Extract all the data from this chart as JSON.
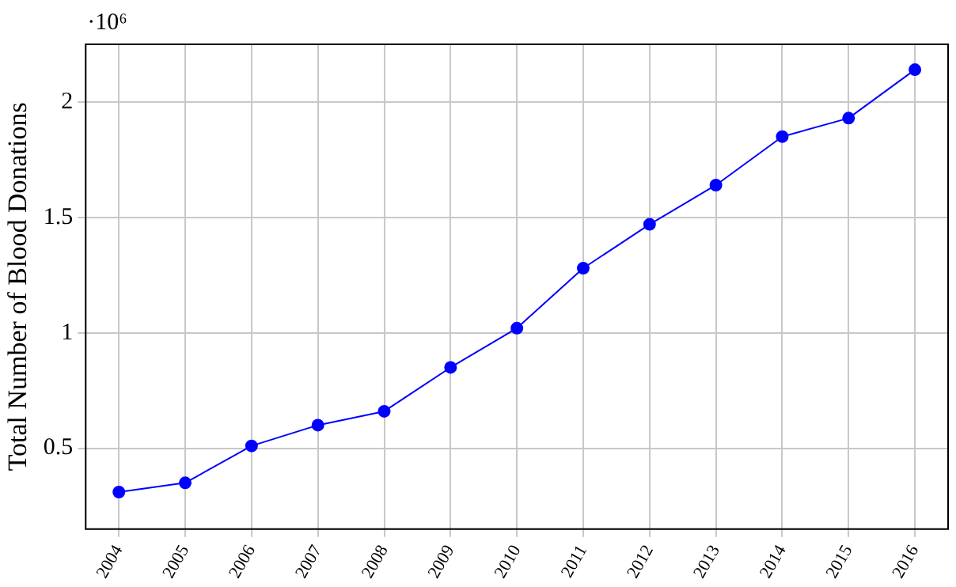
{
  "chart_data": {
    "type": "line",
    "ylabel": "Total Number of Blood Donations",
    "annotations": [
      "·10⁶"
    ],
    "categories": [
      "2004",
      "2005",
      "2006",
      "2007",
      "2008",
      "2009",
      "2010",
      "2011",
      "2012",
      "2013",
      "2014",
      "2015",
      "2016"
    ],
    "series": [
      {
        "color": "#0000ff",
        "values": [
          0.31,
          0.35,
          0.51,
          0.6,
          0.66,
          0.85,
          1.02,
          1.28,
          1.47,
          1.64,
          1.85,
          1.93,
          2.14
        ]
      }
    ],
    "ylim": [
      0.15,
      2.25
    ],
    "yticks": [
      {
        "value": 0.5,
        "label": "0.5"
      },
      1,
      {
        "value": 1.5,
        "label": "1.5"
      },
      2
    ],
    "grid": true,
    "legend": false,
    "marker": "circle",
    "line_style": "solid"
  }
}
